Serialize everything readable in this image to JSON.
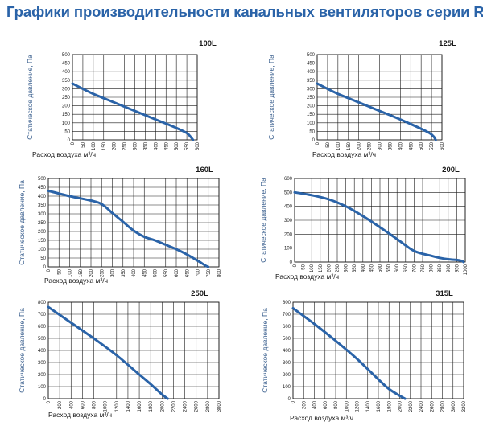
{
  "title": "Графики производительности канальных вентиляторов серии RV",
  "accent_color": "#2a63a8",
  "chart_data": [
    {
      "type": "line",
      "name": "100L",
      "ylabel": "Статическое давление, Па",
      "xlabel": "Расход воздуха м³/ч",
      "xlim": [
        0,
        600
      ],
      "ylim": [
        0,
        500
      ],
      "x_ticks": [
        0,
        50,
        100,
        150,
        200,
        250,
        300,
        350,
        400,
        450,
        500,
        550,
        600
      ],
      "y_ticks": [
        0,
        50,
        100,
        150,
        200,
        250,
        300,
        350,
        400,
        450,
        500
      ],
      "series": [
        {
          "name": "100L",
          "x": [
            0,
            100,
            200,
            300,
            400,
            500,
            550,
            570,
            580
          ],
          "y": [
            330,
            270,
            220,
            170,
            120,
            70,
            40,
            15,
            0
          ]
        }
      ]
    },
    {
      "type": "line",
      "name": "125L",
      "ylabel": "Статическое давление, Па",
      "xlabel": "Расход воздуха м³/ч",
      "xlim": [
        0,
        600
      ],
      "ylim": [
        0,
        500
      ],
      "x_ticks": [
        0,
        50,
        100,
        150,
        200,
        250,
        300,
        350,
        400,
        450,
        500,
        550,
        600
      ],
      "y_ticks": [
        0,
        50,
        100,
        150,
        200,
        250,
        300,
        350,
        400,
        450,
        500
      ],
      "series": [
        {
          "name": "125L",
          "x": [
            0,
            100,
            200,
            300,
            400,
            500,
            540,
            560,
            570
          ],
          "y": [
            330,
            270,
            220,
            170,
            120,
            65,
            40,
            20,
            0
          ]
        }
      ]
    },
    {
      "type": "line",
      "name": "160L",
      "ylabel": "Статическое давление, Па",
      "xlabel": "Расход воздуха м³/ч",
      "xlim": [
        0,
        800
      ],
      "ylim": [
        0,
        500
      ],
      "x_ticks": [
        0,
        50,
        100,
        150,
        200,
        250,
        300,
        350,
        400,
        450,
        500,
        550,
        600,
        650,
        700,
        750,
        800
      ],
      "y_ticks": [
        0,
        50,
        100,
        150,
        200,
        250,
        300,
        350,
        400,
        450,
        500
      ],
      "series": [
        {
          "name": "160L",
          "x": [
            0,
            100,
            200,
            250,
            300,
            350,
            400,
            450,
            500,
            550,
            600,
            650,
            700,
            720,
            740,
            750
          ],
          "y": [
            430,
            400,
            375,
            355,
            305,
            255,
            205,
            170,
            150,
            125,
            100,
            70,
            35,
            20,
            5,
            0
          ]
        }
      ]
    },
    {
      "type": "line",
      "name": "200L",
      "ylabel": "Статическое давление, Па",
      "xlabel": "Расход воздуха м³/ч",
      "xlim": [
        0,
        1000
      ],
      "ylim": [
        0,
        600
      ],
      "x_ticks": [
        0,
        50,
        100,
        150,
        200,
        250,
        300,
        350,
        400,
        450,
        500,
        550,
        600,
        650,
        700,
        750,
        800,
        850,
        900,
        950,
        1000
      ],
      "y_ticks": [
        0,
        100,
        200,
        300,
        400,
        500,
        600
      ],
      "series": [
        {
          "name": "200L",
          "x": [
            0,
            100,
            200,
            300,
            400,
            500,
            600,
            700,
            800,
            850,
            900,
            950,
            980,
            990
          ],
          "y": [
            500,
            480,
            450,
            400,
            330,
            250,
            165,
            80,
            45,
            30,
            20,
            15,
            8,
            0
          ]
        }
      ]
    },
    {
      "type": "line",
      "name": "250L",
      "ylabel": "Статическое давление, Па",
      "xlabel": "Расход воздуха м³/ч",
      "xlim": [
        0,
        3000
      ],
      "ylim": [
        0,
        800
      ],
      "x_ticks": [
        0,
        200,
        400,
        600,
        800,
        1000,
        1200,
        1400,
        1600,
        1800,
        2000,
        2200,
        2400,
        2600,
        2800,
        3000
      ],
      "y_ticks": [
        0,
        100,
        200,
        300,
        400,
        500,
        600,
        700,
        800
      ],
      "series": [
        {
          "name": "250L",
          "x": [
            0,
            400,
            800,
            1200,
            1600,
            1800,
            2000,
            2100
          ],
          "y": [
            760,
            630,
            500,
            360,
            200,
            120,
            35,
            0
          ]
        }
      ]
    },
    {
      "type": "line",
      "name": "315L",
      "ylabel": "Статическое давление, Па",
      "xlabel": "Расход воздуха м³/ч",
      "xlim": [
        0,
        3200
      ],
      "ylim": [
        0,
        800
      ],
      "x_ticks": [
        0,
        200,
        400,
        600,
        800,
        1000,
        1200,
        1400,
        1600,
        1800,
        2000,
        2200,
        2400,
        2600,
        2800,
        3000,
        3200
      ],
      "y_ticks": [
        0,
        100,
        200,
        300,
        400,
        500,
        600,
        700,
        800
      ],
      "series": [
        {
          "name": "315L",
          "x": [
            0,
            400,
            800,
            1200,
            1600,
            1800,
            2000,
            2100
          ],
          "y": [
            750,
            620,
            480,
            330,
            160,
            80,
            25,
            0
          ]
        }
      ]
    }
  ]
}
